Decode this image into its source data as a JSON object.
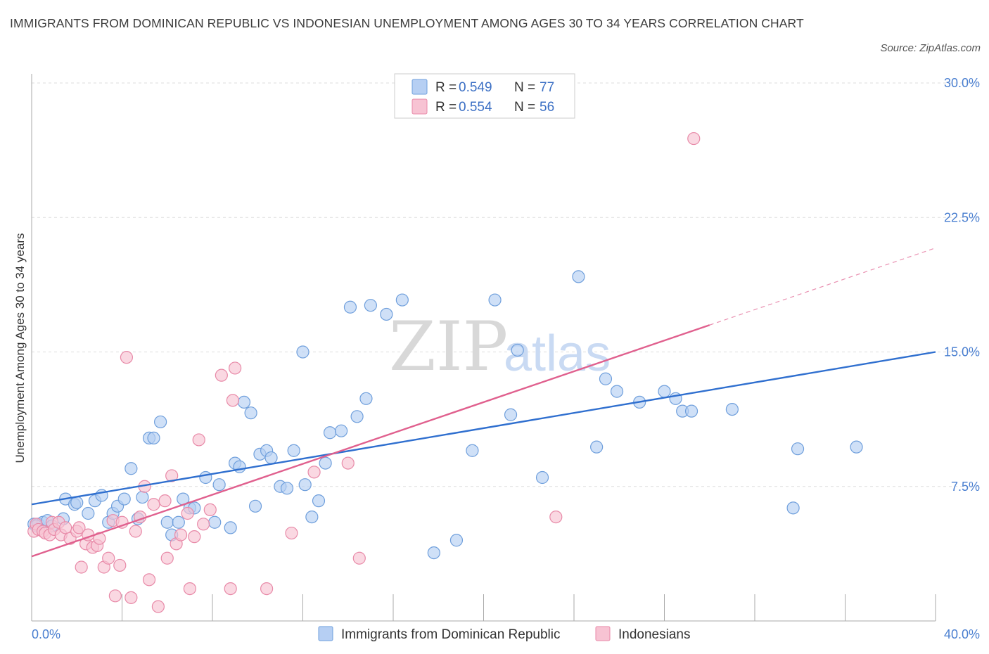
{
  "header": {
    "title": "IMMIGRANTS FROM DOMINICAN REPUBLIC VS INDONESIAN UNEMPLOYMENT AMONG AGES 30 TO 34 YEARS CORRELATION CHART",
    "source": "Source: ZipAtlas.com"
  },
  "watermark": {
    "zip": "ZIP",
    "atlas": "atlas"
  },
  "legend": {
    "series1": {
      "r_label": "R = ",
      "r_value": "0.549",
      "n_label": "N = ",
      "n_value": "77"
    },
    "series2": {
      "r_label": "R = ",
      "r_value": "0.554",
      "n_label": "N = ",
      "n_value": "56"
    }
  },
  "colors": {
    "blue_fill": "#b6cff3",
    "blue_stroke": "#6f9fdc",
    "blue_line": "#2f6fcf",
    "pink_fill": "#f7c3d3",
    "pink_stroke": "#e88aa8",
    "pink_line": "#e0608e",
    "grid": "#dddddd",
    "axis": "#aaaaaa",
    "tick_text": "#4a7fd0"
  },
  "chart_data": {
    "type": "scatter",
    "title": "IMMIGRANTS FROM DOMINICAN REPUBLIC VS INDONESIAN UNEMPLOYMENT AMONG AGES 30 TO 34 YEARS CORRELATION CHART",
    "xlabel": "",
    "ylabel": "Unemployment Among Ages 30 to 34 years",
    "xlim": [
      0,
      40
    ],
    "ylim": [
      0,
      30
    ],
    "x_tick_labels": [
      "0.0%",
      "40.0%"
    ],
    "y_ticks": [
      7.5,
      15.0,
      22.5,
      30.0
    ],
    "y_tick_labels": [
      "7.5%",
      "15.0%",
      "22.5%",
      "30.0%"
    ],
    "grid": true,
    "legend_position": "top-center",
    "series": [
      {
        "name": "Immigrants from Dominican Republic",
        "color": "#6f9fdc",
        "R": 0.549,
        "N": 77,
        "trend": {
          "x": [
            0,
            40
          ],
          "y": [
            6.5,
            15.0
          ],
          "dashed_from": null
        },
        "points": [
          [
            0.1,
            5.4
          ],
          [
            0.3,
            5.4
          ],
          [
            0.5,
            5.5
          ],
          [
            0.7,
            5.6
          ],
          [
            0.9,
            5.3
          ],
          [
            1.4,
            5.7
          ],
          [
            1.5,
            6.8
          ],
          [
            1.9,
            6.5
          ],
          [
            2.0,
            6.6
          ],
          [
            2.5,
            6.0
          ],
          [
            2.8,
            6.7
          ],
          [
            3.1,
            7.0
          ],
          [
            3.4,
            5.5
          ],
          [
            3.6,
            6.0
          ],
          [
            3.8,
            6.4
          ],
          [
            4.1,
            6.8
          ],
          [
            4.4,
            8.5
          ],
          [
            4.7,
            5.7
          ],
          [
            4.9,
            6.9
          ],
          [
            5.2,
            10.2
          ],
          [
            5.4,
            10.2
          ],
          [
            5.7,
            11.1
          ],
          [
            6.0,
            5.5
          ],
          [
            6.2,
            4.8
          ],
          [
            6.5,
            5.5
          ],
          [
            6.7,
            6.8
          ],
          [
            7.0,
            6.3
          ],
          [
            7.2,
            6.3
          ],
          [
            7.7,
            8.0
          ],
          [
            8.1,
            5.5
          ],
          [
            8.3,
            7.6
          ],
          [
            8.8,
            5.2
          ],
          [
            9.0,
            8.8
          ],
          [
            9.2,
            8.6
          ],
          [
            9.4,
            12.2
          ],
          [
            9.7,
            11.6
          ],
          [
            9.9,
            6.4
          ],
          [
            10.1,
            9.3
          ],
          [
            10.4,
            9.5
          ],
          [
            10.6,
            9.1
          ],
          [
            11.0,
            7.5
          ],
          [
            11.3,
            7.4
          ],
          [
            11.6,
            9.5
          ],
          [
            12.0,
            15.0
          ],
          [
            12.1,
            7.6
          ],
          [
            12.4,
            5.8
          ],
          [
            12.7,
            6.7
          ],
          [
            13.0,
            8.8
          ],
          [
            13.2,
            10.5
          ],
          [
            13.7,
            10.6
          ],
          [
            14.1,
            17.5
          ],
          [
            14.4,
            11.4
          ],
          [
            14.8,
            12.4
          ],
          [
            15.0,
            17.6
          ],
          [
            15.7,
            17.1
          ],
          [
            16.4,
            17.9
          ],
          [
            17.8,
            3.8
          ],
          [
            18.8,
            4.5
          ],
          [
            19.5,
            9.5
          ],
          [
            20.5,
            17.9
          ],
          [
            21.2,
            11.5
          ],
          [
            21.5,
            15.1
          ],
          [
            22.6,
            8.0
          ],
          [
            24.2,
            19.2
          ],
          [
            25.0,
            9.7
          ],
          [
            25.4,
            13.5
          ],
          [
            25.9,
            12.8
          ],
          [
            26.9,
            12.2
          ],
          [
            28.0,
            12.8
          ],
          [
            28.5,
            12.4
          ],
          [
            28.8,
            11.7
          ],
          [
            29.2,
            11.7
          ],
          [
            31.0,
            11.8
          ],
          [
            33.7,
            6.3
          ],
          [
            33.9,
            9.6
          ],
          [
            36.5,
            9.7
          ],
          [
            0.2,
            5.3
          ]
        ]
      },
      {
        "name": "Indonesians",
        "color": "#e88aa8",
        "R": 0.554,
        "N": 56,
        "trend": {
          "x": [
            0,
            40
          ],
          "y": [
            3.6,
            20.8
          ],
          "dashed_from": 30.0
        },
        "points": [
          [
            0.1,
            5.0
          ],
          [
            0.2,
            5.4
          ],
          [
            0.3,
            5.1
          ],
          [
            0.5,
            5.0
          ],
          [
            0.6,
            4.9
          ],
          [
            0.8,
            4.8
          ],
          [
            0.9,
            5.5
          ],
          [
            1.0,
            5.1
          ],
          [
            1.2,
            5.5
          ],
          [
            1.3,
            4.8
          ],
          [
            1.5,
            5.2
          ],
          [
            1.7,
            4.6
          ],
          [
            2.0,
            5.0
          ],
          [
            2.1,
            5.2
          ],
          [
            2.2,
            3.0
          ],
          [
            2.4,
            4.3
          ],
          [
            2.5,
            4.8
          ],
          [
            2.7,
            4.1
          ],
          [
            2.9,
            4.2
          ],
          [
            3.0,
            4.6
          ],
          [
            3.2,
            3.0
          ],
          [
            3.4,
            3.5
          ],
          [
            3.6,
            5.6
          ],
          [
            3.7,
            1.4
          ],
          [
            3.9,
            3.1
          ],
          [
            4.0,
            5.5
          ],
          [
            4.2,
            14.7
          ],
          [
            4.4,
            1.3
          ],
          [
            4.6,
            5.0
          ],
          [
            4.8,
            5.8
          ],
          [
            5.0,
            7.5
          ],
          [
            5.2,
            2.3
          ],
          [
            5.4,
            6.5
          ],
          [
            5.6,
            0.8
          ],
          [
            5.9,
            6.7
          ],
          [
            6.0,
            3.5
          ],
          [
            6.2,
            8.1
          ],
          [
            6.4,
            4.3
          ],
          [
            6.6,
            4.8
          ],
          [
            6.9,
            6.0
          ],
          [
            7.0,
            1.8
          ],
          [
            7.2,
            4.7
          ],
          [
            7.4,
            10.1
          ],
          [
            7.6,
            5.4
          ],
          [
            7.9,
            6.2
          ],
          [
            8.4,
            13.7
          ],
          [
            8.9,
            12.3
          ],
          [
            8.8,
            1.8
          ],
          [
            9.0,
            14.1
          ],
          [
            10.4,
            1.8
          ],
          [
            11.5,
            4.9
          ],
          [
            12.5,
            8.3
          ],
          [
            14.0,
            8.8
          ],
          [
            14.5,
            3.5
          ],
          [
            23.2,
            5.8
          ],
          [
            29.3,
            26.9
          ]
        ]
      }
    ]
  },
  "bottom_legend": {
    "series1_label": "Immigrants from Dominican Republic",
    "series2_label": "Indonesians"
  }
}
